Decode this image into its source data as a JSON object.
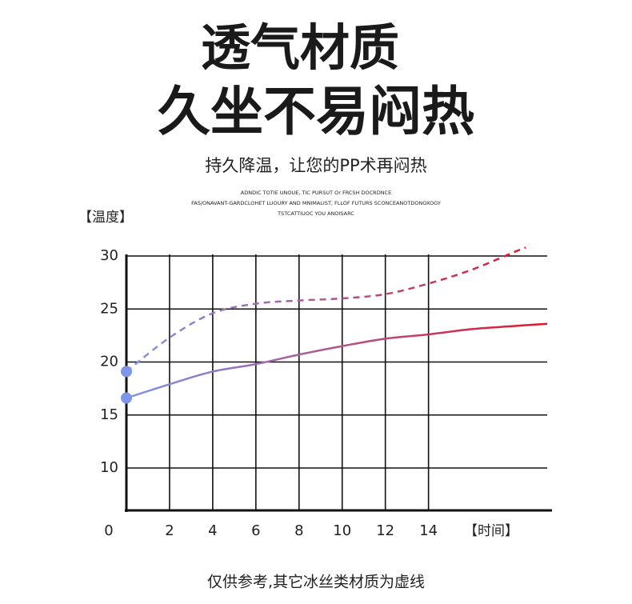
{
  "header": {
    "title_line1": "透气材质",
    "title_line2": "久坐不易闷热",
    "subtitle": "持久降温，让您的PP术再闷热",
    "english_lines": [
      "ADNDIC TOTIE UNOUE, TIC PURSUT Or FRCSH DOCRDNCE",
      "FAS/ONAVANT-GARDCLOHET LUOURY AND MNIMALIST, FLLOF FUTURS SCONCEANOTDONOXOGY",
      "TSTCATTIUOC YOU ANOISARC"
    ]
  },
  "chart_data": {
    "type": "line",
    "y_label": "【温度】",
    "x_label": "【时间】",
    "xlim": [
      0,
      19.5
    ],
    "xticks": [
      0,
      2,
      4,
      6,
      8,
      10,
      12,
      14
    ],
    "ylim": [
      6,
      30
    ],
    "yticks": [
      10,
      15,
      20,
      25,
      30
    ],
    "grid": true,
    "series": [
      {
        "x": [
          0,
          2,
          4,
          6,
          8,
          10,
          12,
          14,
          16,
          18,
          19.5
        ],
        "values": [
          16.6,
          17.9,
          19.1,
          19.8,
          20.7,
          21.5,
          22.2,
          22.6,
          23.1,
          23.4,
          23.6
        ],
        "gradient": [
          "#7f95ea",
          "#e3142b"
        ],
        "dashed": false
      },
      {
        "x": [
          0,
          2,
          4,
          6,
          8,
          10,
          12,
          14,
          16,
          18,
          18.5
        ],
        "values": [
          19.1,
          22.3,
          24.6,
          25.5,
          25.8,
          26.0,
          26.4,
          27.4,
          28.7,
          30.4,
          30.8
        ],
        "gradient": [
          "#7f95ea",
          "#e3142b"
        ],
        "dashed": true
      }
    ],
    "footnote": "仅供参考,其它冰丝类材质为虚线"
  }
}
